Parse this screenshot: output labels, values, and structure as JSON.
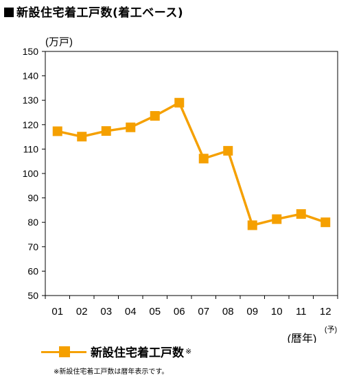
{
  "title": "新設住宅着工戸数(着工ベース)",
  "colors": {
    "series": "#f5a000",
    "marker": "#f5a000",
    "frame": "#000000",
    "grid": "#000000"
  },
  "legend": {
    "label": "新設住宅着工戸数",
    "mark": "※"
  },
  "footnote": "※新設住宅着工戸数は暦年表示です。",
  "chart_data": {
    "type": "line",
    "unit_label": "(万戸)",
    "x_unit_label": "(暦年)",
    "forecast_mark": "(予)",
    "categories": [
      "01",
      "02",
      "03",
      "04",
      "05",
      "06",
      "07",
      "08",
      "09",
      "10",
      "11",
      "12"
    ],
    "series": [
      {
        "name": "新設住宅着工戸数",
        "values": [
          117.3,
          115.1,
          117.4,
          118.9,
          123.6,
          129.0,
          106.1,
          109.3,
          78.8,
          81.3,
          83.4,
          80.0
        ]
      }
    ],
    "ylim": [
      50,
      150
    ],
    "yticks": [
      50,
      60,
      70,
      80,
      90,
      100,
      110,
      120,
      130,
      140,
      150
    ],
    "marker": "square",
    "grid": false,
    "legend_position": "bottom-left"
  }
}
